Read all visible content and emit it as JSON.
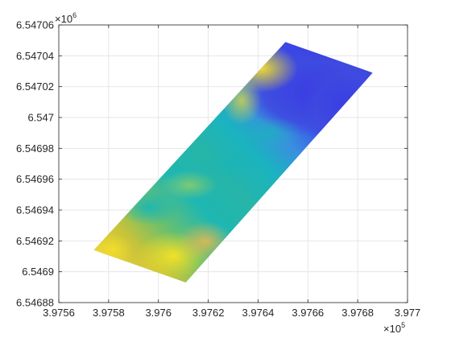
{
  "chart_data": {
    "type": "heatmap",
    "title": "",
    "xlabel": "",
    "ylabel": "",
    "grid": true,
    "x": {
      "lim": [
        397560,
        397700
      ],
      "ticks": [
        397560,
        397580,
        397600,
        397620,
        397640,
        397660,
        397680,
        397700
      ],
      "tick_labels": [
        "3.9756",
        "3.9758",
        "3.976",
        "3.9762",
        "3.9764",
        "3.9766",
        "3.9768",
        "3.977"
      ],
      "exponent_base": "×10",
      "exponent_power": "5"
    },
    "y": {
      "lim": [
        6546880,
        6547060
      ],
      "ticks": [
        6546880,
        6546900,
        6546920,
        6546940,
        6546960,
        6546980,
        6547000,
        6547020,
        6547040,
        6547060
      ],
      "tick_labels": [
        "6.54688",
        "6.5469",
        "6.54692",
        "6.54694",
        "6.54696",
        "6.54698",
        "6.547",
        "6.54702",
        "6.54704",
        "6.54706"
      ],
      "exponent_base": "×10",
      "exponent_power": "6"
    },
    "surface_corners": [
      [
        397574,
        6546914
      ],
      [
        397651,
        6547049
      ],
      [
        397686,
        6547029
      ],
      [
        397611,
        6546893
      ]
    ],
    "colormap": "parula",
    "colors": {
      "high": "#f9fb0e",
      "mid_high": "#fbbc3c",
      "mid": "#8ec74a",
      "mid_low": "#18b6b6",
      "low": "#2a7ee0",
      "lowest": "#3c3ee0"
    }
  }
}
